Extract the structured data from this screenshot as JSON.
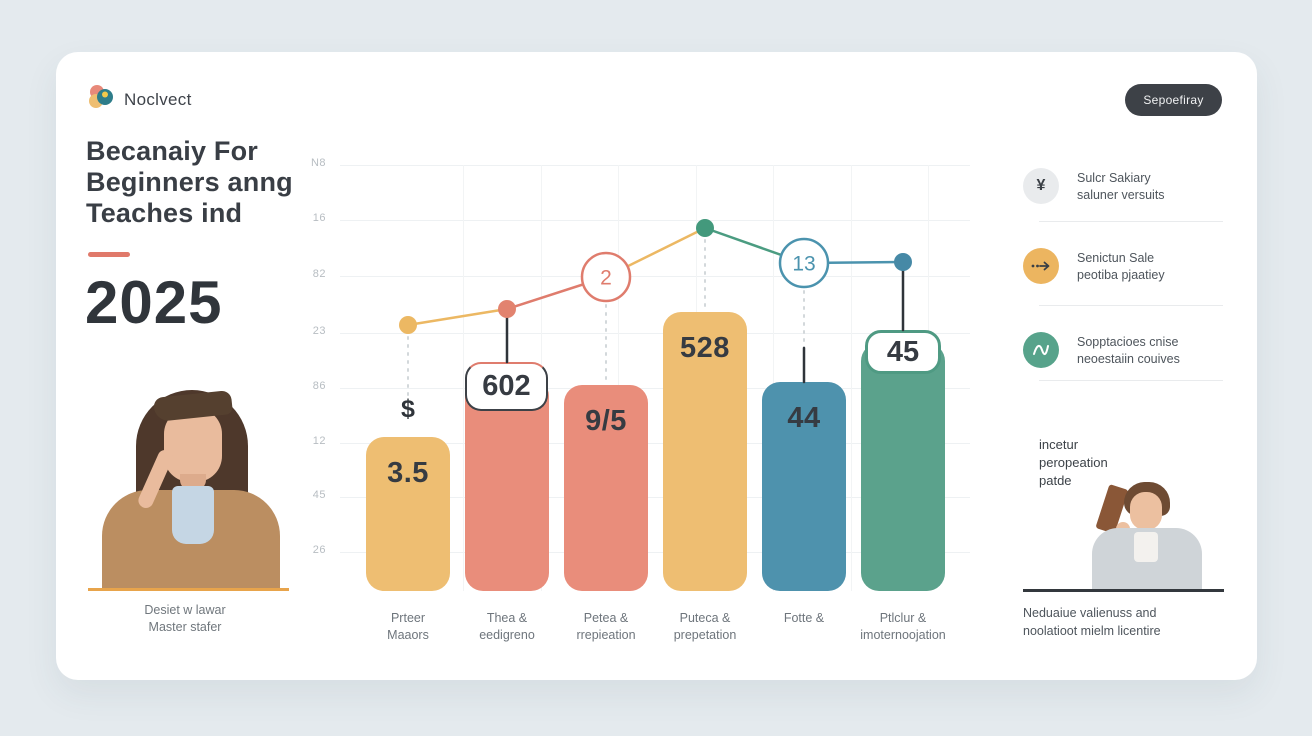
{
  "page": {
    "background": "#e4eaee",
    "card_background": "#ffffff"
  },
  "header": {
    "brand_name": "Noclvect",
    "action_button": {
      "label": "Sepoefiray",
      "background": "#3d4147"
    }
  },
  "intro": {
    "title": "Becanaiy For\nBeginners anng\nTeaches ind",
    "accent_color": "#e0796a",
    "year": "2025",
    "photo_caption": "Desiet w lawar\nMaster stafer"
  },
  "chart_data": {
    "type": "bar",
    "title": "",
    "y_axis_labels": [
      "N8",
      "16",
      "82",
      "23",
      "86",
      "12",
      "45",
      "26"
    ],
    "categories": [
      "Prteer\nMaaors",
      "Thea &\needigreno",
      "Petea &\nrrepieation",
      "Puteca &\nprepetation",
      "Fotte &",
      "Ptlclur &\nimoternoojation"
    ],
    "bars": [
      {
        "value": "3.5",
        "prefix": "$",
        "color": "#eebe72",
        "height_pct": 35.7,
        "style": "plain",
        "connector": "dotted"
      },
      {
        "value": "602",
        "prefix": "",
        "color": "#e98d7b",
        "height_pct": 49.4,
        "style": "float-badge",
        "connector": "black"
      },
      {
        "value": "9/5",
        "prefix": "",
        "color": "#e98d7b",
        "height_pct": 47.8,
        "style": "plain",
        "connector": "dotted"
      },
      {
        "value": "528",
        "prefix": "",
        "color": "#eebe72",
        "height_pct": 64.7,
        "style": "plain",
        "connector": "dotted"
      },
      {
        "value": "44",
        "prefix": "",
        "color": "#4e92ad",
        "height_pct": 48.5,
        "style": "plain",
        "connector": "dotted+black"
      },
      {
        "value": "45",
        "prefix": "",
        "color": "#5ba28c",
        "height_pct": 57.5,
        "style": "notch-badge",
        "connector": "black"
      }
    ],
    "line": {
      "points": [
        {
          "type": "dot",
          "y_pct": 61.7,
          "color": "#ecb863",
          "label": ""
        },
        {
          "type": "dot",
          "y_pct": 65.4,
          "color": "#e2836f",
          "label": ""
        },
        {
          "type": "circle",
          "y_pct": 72.9,
          "color": "#df7c6d",
          "label": "2"
        },
        {
          "type": "dot",
          "y_pct": 84.2,
          "color": "#43997c",
          "label": ""
        },
        {
          "type": "circle",
          "y_pct": 76.1,
          "color": "#4b93ae",
          "label": "13"
        },
        {
          "type": "dot",
          "y_pct": 76.3,
          "color": "#4689a6",
          "label": ""
        }
      ],
      "segment_colors": [
        "#ecb863",
        "#df7c6d",
        "#ecb863",
        "#4b9c81",
        "#4b93ae"
      ]
    },
    "grid": true,
    "legend_position": "right"
  },
  "sidebar": {
    "legend": [
      {
        "icon": "currency-icon",
        "icon_bg": "#e9ebed",
        "icon_color": "#3a3f45",
        "text": "Sulcr Sakiary\nsaluner versuits"
      },
      {
        "icon": "arrow-icon",
        "icon_bg": "#ecb560",
        "icon_color": "#3a3f45",
        "text": "Senictun Sale\npeotiba pjaatiey"
      },
      {
        "icon": "wave-icon",
        "icon_bg": "#57a38b",
        "icon_color": "#ffffff",
        "text": "Sopptacioes cnise\nneoestaiin couives"
      }
    ],
    "note": "incetur\nperopeation\npatde",
    "photo_caption": "Neduaiue valienuss and\nnoolatioot mielm licentire"
  }
}
